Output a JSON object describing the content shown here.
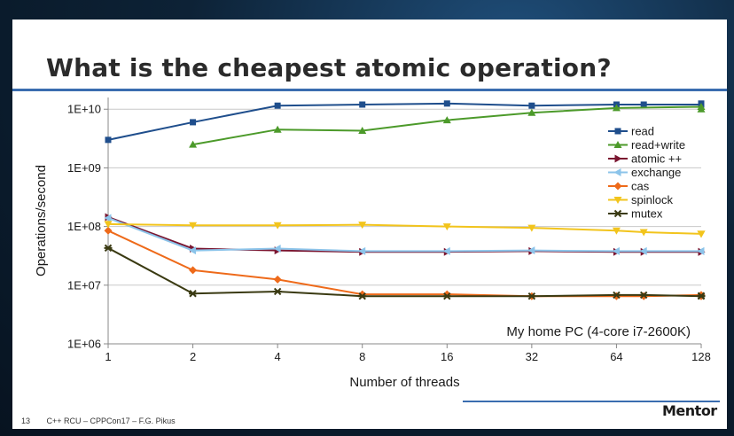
{
  "slide": {
    "title": "What is the cheapest atomic operation?",
    "page_number": "13",
    "footer_text": "C++ RCU – CPPCon17 – F.G. Pikus",
    "logo_text": "Mentor"
  },
  "colors": {
    "title_rule": "#3a6db0",
    "background": "#ffffff"
  },
  "chart_data": {
    "type": "line",
    "title": "",
    "xlabel": "Number of threads",
    "ylabel": "Operations/second",
    "x_scale": "log2",
    "y_scale": "log10",
    "x_ticks": [
      "1",
      "2",
      "4",
      "8",
      "16",
      "32",
      "64",
      "128"
    ],
    "y_ticks": [
      "1E+06",
      "1E+07",
      "1E+08",
      "1E+09",
      "1E+10"
    ],
    "ylim": [
      1000000,
      20000000000
    ],
    "grid": "horizontal",
    "legend_position": "right",
    "annotation": "My home PC (4-core i7-2600K)",
    "series": [
      {
        "name": "read",
        "color": "#1f4e8c",
        "marker": "square",
        "x": [
          1,
          2,
          4,
          8,
          16,
          32,
          64,
          80,
          128,
          128
        ],
        "y": [
          3000000000.0,
          6000000000.0,
          11500000000.0,
          12000000000.0,
          12500000000.0,
          11500000000.0,
          12000000000.0,
          12000000000.0,
          12000000000.0,
          12500000000.0
        ]
      },
      {
        "name": "read+write",
        "color": "#4c9a2a",
        "marker": "triangle-up",
        "x": [
          2,
          4,
          8,
          16,
          32,
          64,
          128,
          128
        ],
        "y": [
          2500000000.0,
          4500000000.0,
          4300000000.0,
          6500000000.0,
          8700000000.0,
          10500000000.0,
          11000000000.0,
          10000000000.0
        ]
      },
      {
        "name": "atomic ++",
        "color": "#7a1530",
        "marker": "triangle-right",
        "x": [
          1,
          2,
          4,
          8,
          16,
          32,
          64,
          80,
          128,
          128
        ],
        "y": [
          145000000.0,
          42000000.0,
          39000000.0,
          37000000.0,
          37000000.0,
          38000000.0,
          37000000.0,
          37000000.0,
          37000000.0,
          37000000.0
        ]
      },
      {
        "name": "exchange",
        "color": "#8cc4ea",
        "marker": "triangle-left",
        "x": [
          1,
          2,
          4,
          8,
          16,
          32,
          64,
          80,
          128,
          128
        ],
        "y": [
          140000000.0,
          39000000.0,
          42000000.0,
          38000000.0,
          38000000.0,
          39000000.0,
          38000000.0,
          38000000.0,
          38000000.0,
          38000000.0
        ]
      },
      {
        "name": "cas",
        "color": "#ee6a1a",
        "marker": "diamond",
        "x": [
          1,
          2,
          4,
          8,
          16,
          32,
          64,
          80,
          128,
          128
        ],
        "y": [
          85000000.0,
          18000000.0,
          12500000.0,
          7000000.0,
          7000000.0,
          6500000.0,
          6500000.0,
          6500000.0,
          6800000.0,
          6500000.0
        ]
      },
      {
        "name": "spinlock",
        "color": "#f2c41c",
        "marker": "triangle-down",
        "x": [
          1,
          2,
          4,
          8,
          16,
          32,
          64,
          80,
          128,
          128
        ],
        "y": [
          110000000.0,
          105000000.0,
          105000000.0,
          107000000.0,
          100000000.0,
          95000000.0,
          85000000.0,
          80000000.0,
          75000000.0,
          75000000.0
        ]
      },
      {
        "name": "mutex",
        "color": "#3a3a12",
        "marker": "star",
        "x": [
          1,
          2,
          4,
          8,
          16,
          32,
          64,
          80,
          128,
          128
        ],
        "y": [
          43000000.0,
          7200000.0,
          7800000.0,
          6500000.0,
          6500000.0,
          6500000.0,
          6800000.0,
          6800000.0,
          6500000.0,
          6600000.0
        ]
      }
    ]
  }
}
